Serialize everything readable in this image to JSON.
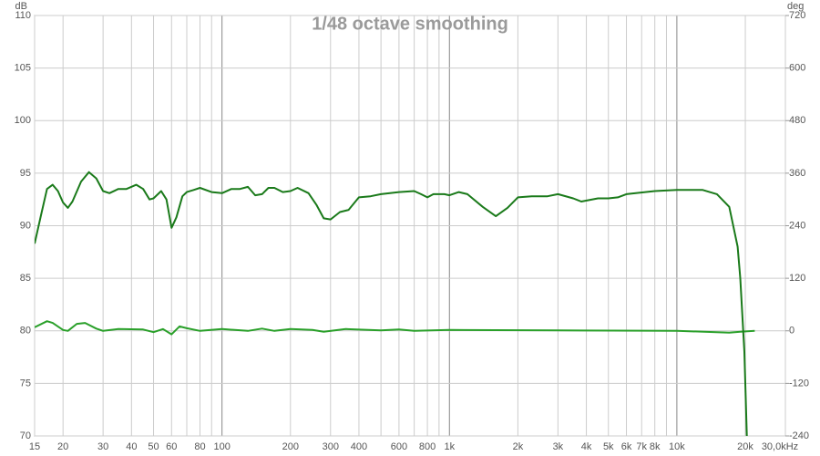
{
  "chart_data": {
    "type": "line",
    "title": "1/48 octave smoothing",
    "y_label": "dB",
    "y2_label": "deg",
    "xscale": "log",
    "xlim": [
      15,
      30000
    ],
    "ylim": [
      70,
      110
    ],
    "y2lim": [
      -240,
      720
    ],
    "grid": true,
    "xticks": [
      15,
      20,
      30,
      40,
      50,
      60,
      80,
      100,
      200,
      300,
      400,
      600,
      800,
      {
        "value": 1000,
        "label": "1k"
      },
      {
        "value": 2000,
        "label": "2k"
      },
      {
        "value": 3000,
        "label": "3k"
      },
      {
        "value": 4000,
        "label": "4k"
      },
      {
        "value": 5000,
        "label": "5k"
      },
      {
        "value": 6000,
        "label": "6k"
      },
      {
        "value": 7000,
        "label": "7k"
      },
      {
        "value": 8000,
        "label": "8k"
      },
      {
        "value": 10000,
        "label": "10k"
      },
      {
        "value": 20000,
        "label": "20k"
      },
      {
        "value": 30000,
        "label": "30,0kHz"
      }
    ],
    "xgrid_minor": [
      70,
      90,
      500,
      700,
      900,
      9000
    ],
    "yticks": [
      70,
      75,
      80,
      85,
      90,
      95,
      100,
      105,
      110
    ],
    "y2ticks": [
      -240,
      -120,
      0,
      120,
      240,
      360,
      480,
      600,
      720
    ],
    "series": [
      {
        "color": "#1a7a1a",
        "x": [
          15,
          16,
          17,
          18,
          19,
          20,
          21,
          22,
          24,
          26,
          28,
          30,
          32,
          35,
          38,
          42,
          45,
          48,
          50,
          54,
          57,
          60,
          63,
          67,
          70,
          75,
          80,
          90,
          100,
          110,
          120,
          130,
          140,
          150,
          160,
          170,
          185,
          200,
          215,
          240,
          260,
          280,
          300,
          330,
          360,
          400,
          450,
          500,
          600,
          700,
          750,
          800,
          850,
          950,
          1000,
          1100,
          1200,
          1400,
          1600,
          1800,
          2000,
          2300,
          2700,
          3000,
          3500,
          3800,
          4500,
          5000,
          5500,
          6000,
          8000,
          10000,
          13000,
          15000,
          17000,
          18500,
          19000,
          19800,
          20300
        ],
        "values": [
          88.3,
          91,
          93.5,
          93.9,
          93.3,
          92.2,
          91.7,
          92.3,
          94.2,
          95.1,
          94.5,
          93.3,
          93.1,
          93.5,
          93.5,
          93.9,
          93.5,
          92.5,
          92.6,
          93.3,
          92.5,
          89.8,
          90.8,
          92.8,
          93.2,
          93.4,
          93.6,
          93.2,
          93.1,
          93.5,
          93.5,
          93.7,
          92.9,
          93.0,
          93.6,
          93.6,
          93.2,
          93.3,
          93.6,
          93.1,
          92.0,
          90.7,
          90.6,
          91.3,
          91.5,
          92.7,
          92.8,
          93.0,
          93.2,
          93.3,
          93.0,
          92.7,
          93.0,
          93.0,
          92.9,
          93.2,
          93.0,
          91.8,
          90.9,
          91.7,
          92.7,
          92.8,
          92.8,
          93.0,
          92.6,
          92.3,
          92.6,
          92.6,
          92.7,
          93.0,
          93.3,
          93.4,
          93.4,
          93.0,
          91.8,
          88,
          85,
          78,
          70
        ]
      },
      {
        "color": "#2aa02a",
        "axis": "y2",
        "x": [
          15,
          17,
          18,
          20,
          21,
          23,
          25,
          28,
          30,
          35,
          45,
          50,
          55,
          60,
          65,
          70,
          80,
          100,
          130,
          150,
          170,
          200,
          250,
          280,
          350,
          500,
          600,
          700,
          1000,
          3000,
          10000,
          17000,
          19000,
          22000
        ],
        "values": [
          8,
          22,
          18,
          2,
          0,
          16,
          18,
          5,
          0,
          4,
          3,
          -3,
          4,
          -8,
          10,
          6,
          0,
          4,
          0,
          5,
          0,
          4,
          2,
          -2,
          4,
          1,
          3,
          0,
          2,
          1,
          0,
          -4,
          -2,
          0
        ]
      }
    ]
  }
}
